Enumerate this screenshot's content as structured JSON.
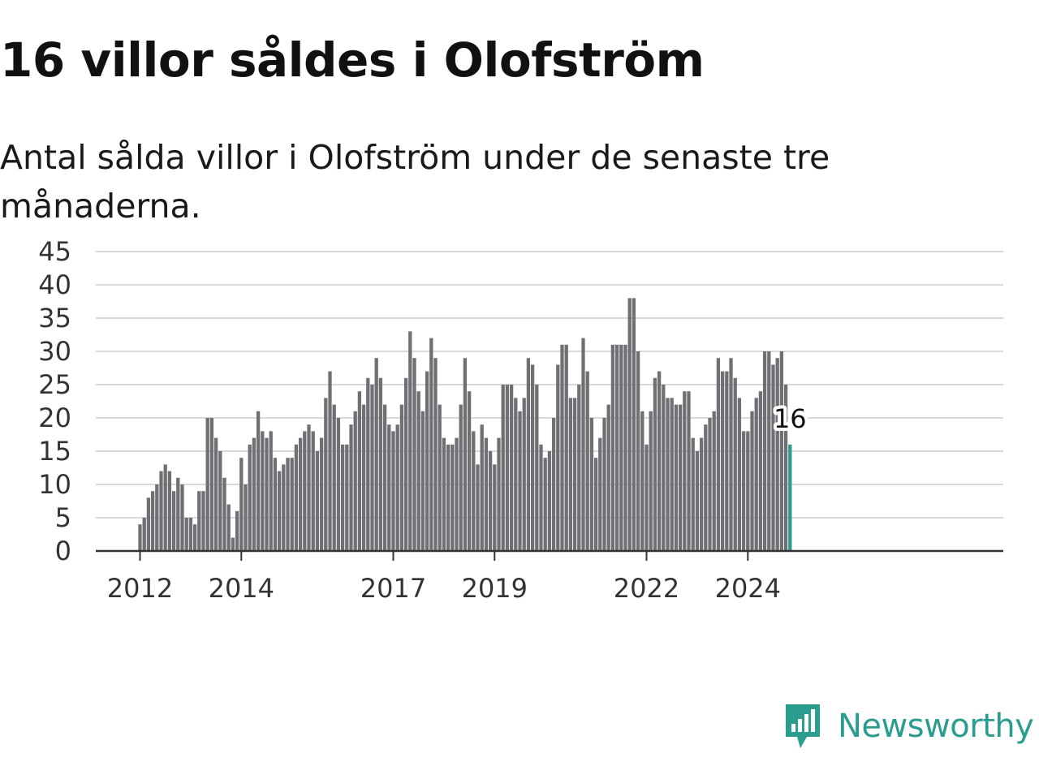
{
  "header": {
    "title": "16 villor såldes i Olofström",
    "subtitle": "Antal sålda villor i Olofström under de senaste tre månaderna."
  },
  "brand": {
    "name": "Newsworthy"
  },
  "colors": {
    "bar": "#707074",
    "highlight": "#2a9d8f",
    "grid": "#d9d9d9",
    "axis": "#333333"
  },
  "chart_data": {
    "type": "bar",
    "title": "16 villor såldes i Olofström",
    "subtitle": "Antal sålda villor i Olofström under de senaste tre månaderna.",
    "xlabel": "",
    "ylabel": "",
    "ylim": [
      0,
      45
    ],
    "yticks": [
      0,
      5,
      10,
      15,
      20,
      25,
      30,
      35,
      40,
      45
    ],
    "grid": true,
    "x_start": "2012-01",
    "x_interval": "month",
    "xtick_labels": [
      {
        "label": "2012",
        "x": "2012-01"
      },
      {
        "label": "2014",
        "x": "2014-01"
      },
      {
        "label": "2017",
        "x": "2017-01"
      },
      {
        "label": "2019",
        "x": "2019-01"
      },
      {
        "label": "2022",
        "x": "2022-01"
      },
      {
        "label": "2024",
        "x": "2024-01"
      }
    ],
    "values": [
      4,
      5,
      8,
      9,
      10,
      12,
      13,
      12,
      9,
      11,
      10,
      5,
      5,
      4,
      9,
      9,
      20,
      20,
      17,
      15,
      11,
      7,
      2,
      6,
      14,
      10,
      16,
      17,
      21,
      18,
      17,
      18,
      14,
      12,
      13,
      14,
      14,
      16,
      17,
      18,
      19,
      18,
      15,
      17,
      23,
      27,
      22,
      20,
      16,
      16,
      19,
      21,
      24,
      22,
      26,
      25,
      29,
      26,
      22,
      19,
      18,
      19,
      22,
      26,
      33,
      29,
      24,
      21,
      27,
      32,
      29,
      22,
      17,
      16,
      16,
      17,
      22,
      29,
      24,
      18,
      13,
      19,
      17,
      15,
      13,
      17,
      25,
      25,
      25,
      23,
      21,
      23,
      29,
      28,
      25,
      16,
      14,
      15,
      20,
      28,
      31,
      31,
      23,
      23,
      25,
      32,
      27,
      20,
      14,
      17,
      20,
      22,
      31,
      31,
      31,
      31,
      38,
      38,
      30,
      21,
      16,
      21,
      26,
      27,
      25,
      23,
      23,
      22,
      22,
      24,
      24,
      17,
      15,
      17,
      19,
      20,
      21,
      29,
      27,
      27,
      29,
      26,
      23,
      18,
      18,
      21,
      23,
      24,
      30,
      30,
      28,
      29,
      30,
      25,
      16
    ],
    "highlight": {
      "x": "2024-11",
      "value": 16,
      "label": "16"
    }
  }
}
